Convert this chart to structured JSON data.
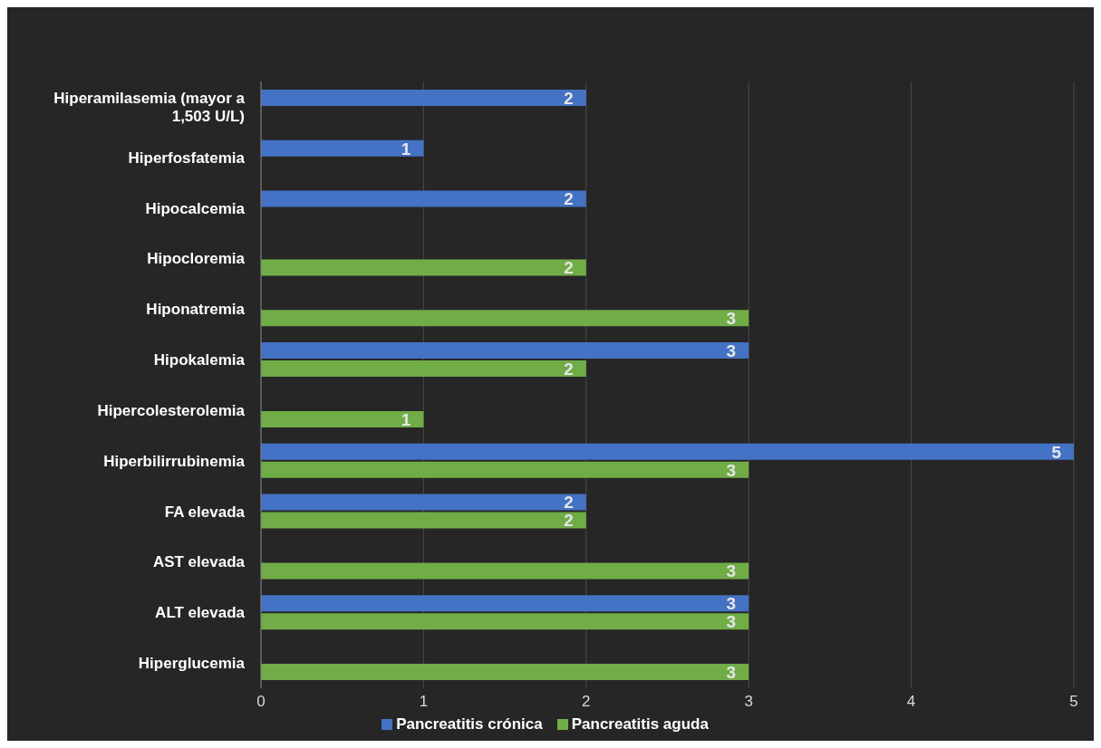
{
  "chart_data": {
    "type": "bar",
    "orientation": "horizontal",
    "categories": [
      "Hiperamilasemia (mayor a 1,503 U/L)",
      "Hiperfosfatemia",
      "Hipocalcemia",
      "Hipocloremia",
      "Hiponatremia",
      "Hipokalemia",
      "Hipercolesterolemia",
      "Hiperbilirrubinemia",
      "FA elevada",
      "AST elevada",
      "ALT elevada",
      "Hiperglucemia"
    ],
    "series": [
      {
        "name": "Pancreatitis crónica",
        "color": "#4472c4",
        "values": [
          2,
          1,
          2,
          null,
          null,
          3,
          null,
          5,
          2,
          null,
          3,
          null
        ]
      },
      {
        "name": "Pancreatitis aguda",
        "color": "#70ad47",
        "values": [
          null,
          null,
          null,
          2,
          3,
          2,
          1,
          3,
          2,
          3,
          3,
          3
        ]
      }
    ],
    "xlim": [
      0,
      5
    ],
    "xticks": [
      0,
      1,
      2,
      3,
      4,
      5
    ],
    "grid": "x",
    "legend": "bottom",
    "data_labels": true
  }
}
